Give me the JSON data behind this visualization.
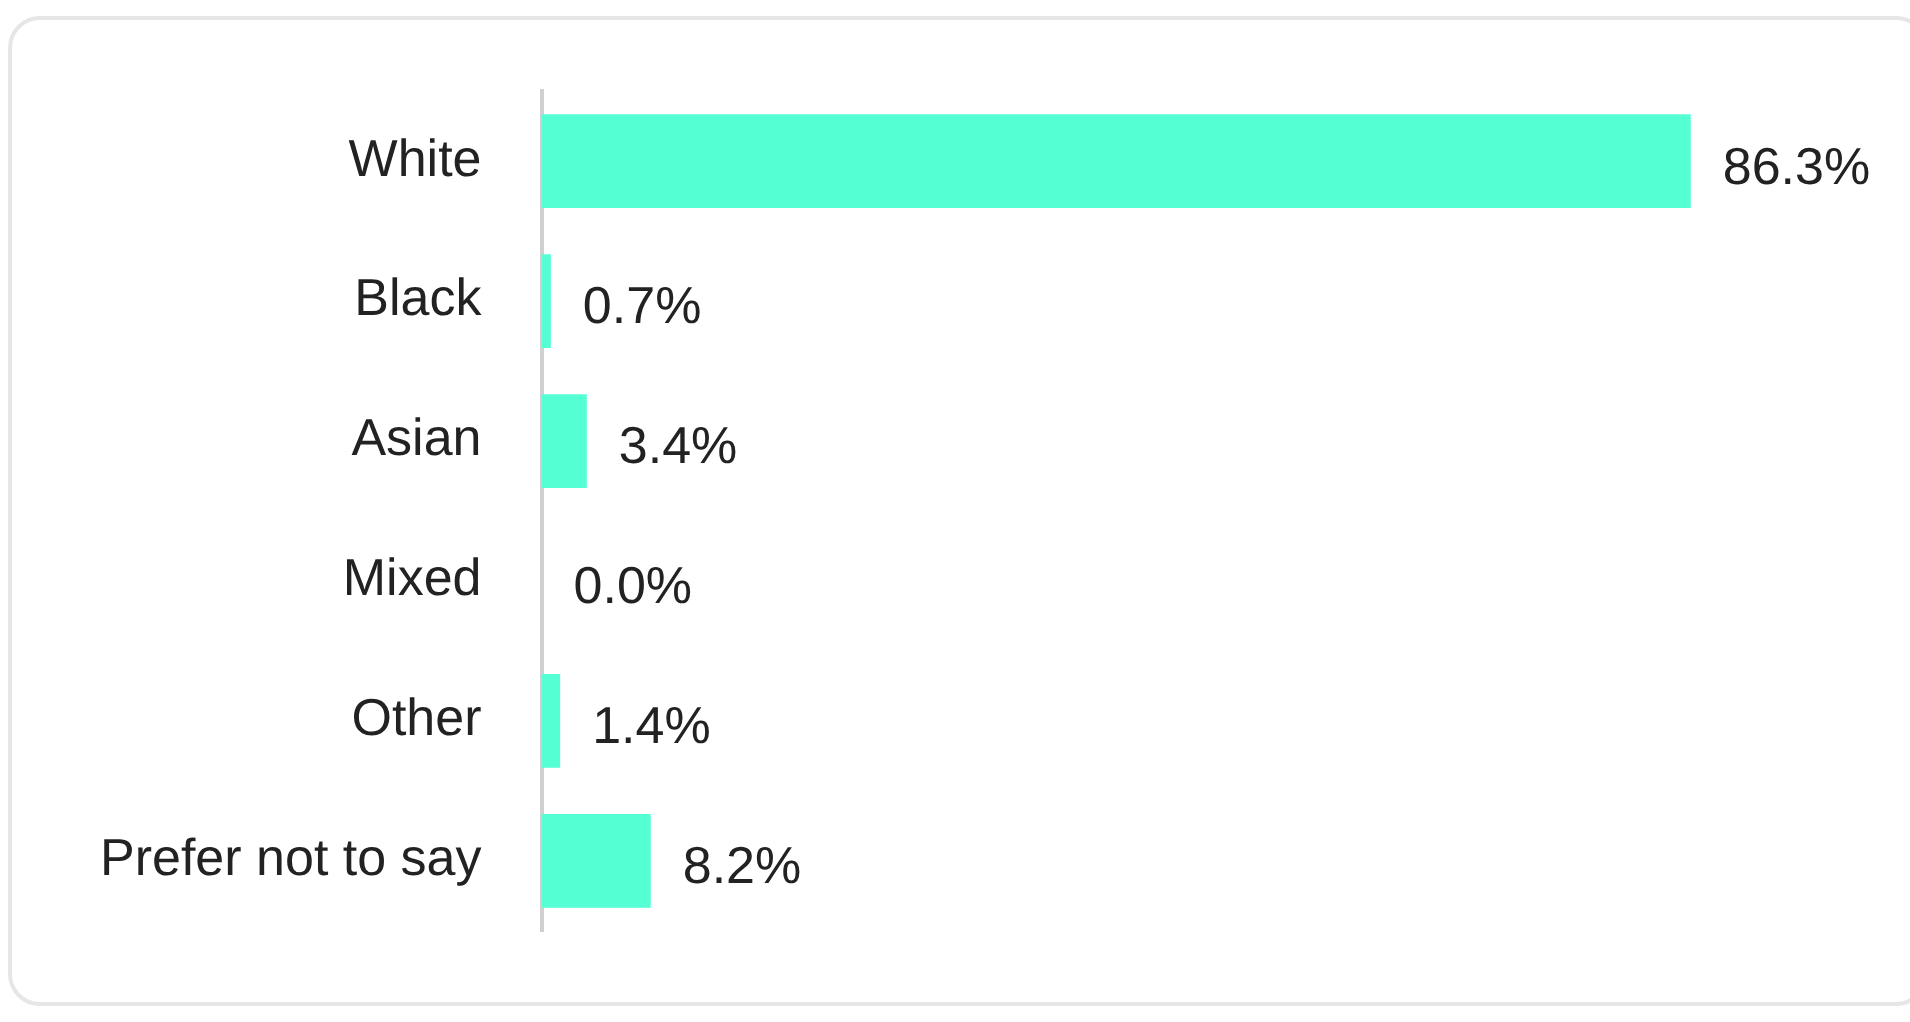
{
  "chart_data": {
    "type": "bar",
    "orientation": "horizontal",
    "categories": [
      "White",
      "Black",
      "Asian",
      "Mixed",
      "Other",
      "Prefer not to say"
    ],
    "values": [
      86.3,
      0.7,
      3.4,
      0.0,
      1.4,
      8.2
    ],
    "value_labels": [
      "86.3%",
      "0.7%",
      "3.4%",
      "0.0%",
      "1.4%",
      "8.2%"
    ],
    "color": "#55ffd4",
    "grid": false,
    "legend": false,
    "tick_labels": "y"
  }
}
